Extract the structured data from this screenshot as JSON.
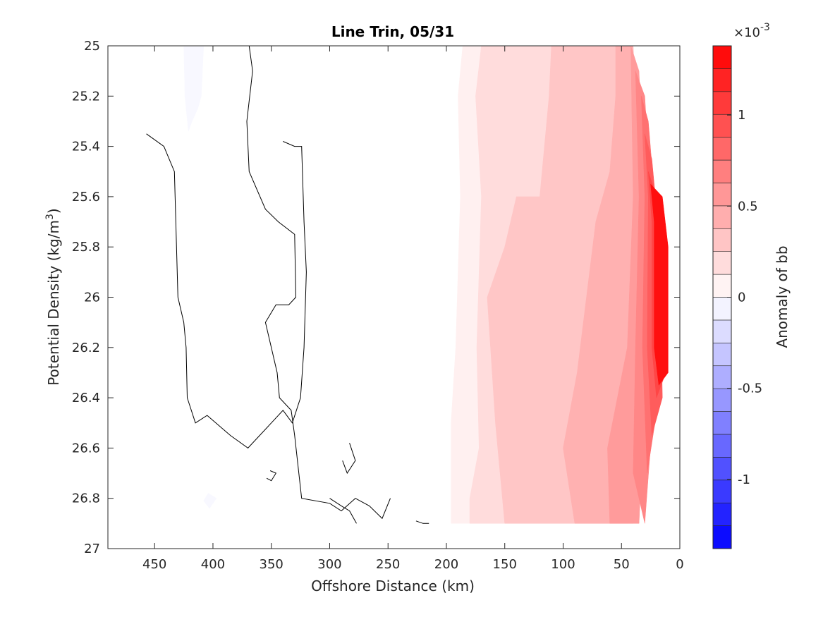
{
  "chart_data": {
    "type": "heatmap",
    "title": "Line Trin, 05/31",
    "xlabel": "Offshore Distance (km)",
    "ylabel_main": "Potential Density (kg/m",
    "ylabel_sup": "3",
    "ylabel_tail": ")",
    "xlim": [
      490,
      0
    ],
    "xticks": [
      450,
      400,
      350,
      300,
      250,
      200,
      150,
      100,
      50,
      0
    ],
    "ylim": [
      25,
      27
    ],
    "y_reversed": true,
    "yticks": [
      "25",
      "25.2",
      "25.4",
      "25.6",
      "25.8",
      "26",
      "26.2",
      "26.4",
      "26.6",
      "26.8",
      "27"
    ],
    "yticks_values": [
      25,
      25.2,
      25.4,
      25.6,
      25.8,
      26,
      26.2,
      26.4,
      26.6,
      26.8,
      27
    ],
    "colorbar": {
      "label": "Anomaly of bb",
      "multiplier_base": "×10",
      "multiplier_exp": "-3",
      "range": [
        -0.00138,
        0.00138
      ],
      "ticks": [
        "1",
        "0.5",
        "0",
        "-0.5",
        "-1"
      ],
      "tick_values": [
        1,
        0.5,
        0,
        -0.5,
        -1
      ],
      "n_levels": 22,
      "positive_color": "#ff0000",
      "negative_color": "#0000ff",
      "neutral_color": "#ffffff"
    },
    "regions": [
      {
        "level": -0.04,
        "points": [
          [
            425,
            25
          ],
          [
            408,
            25
          ],
          [
            410,
            25.2
          ],
          [
            413,
            25.25
          ],
          [
            418,
            25.3
          ],
          [
            421,
            25.34
          ],
          [
            424,
            25.2
          ]
        ]
      },
      {
        "level": -0.04,
        "points": [
          [
            404,
            26.78
          ],
          [
            397,
            26.8
          ],
          [
            403,
            26.84
          ],
          [
            408,
            26.81
          ]
        ]
      },
      {
        "level": 0.08,
        "points": [
          [
            186,
            25
          ],
          [
            40,
            25
          ],
          [
            40,
            26.9
          ],
          [
            196,
            26.9
          ],
          [
            196,
            26.5
          ],
          [
            192,
            26.2
          ],
          [
            188,
            25.6
          ],
          [
            190,
            25.2
          ]
        ]
      },
      {
        "level": 0.19,
        "points": [
          [
            170,
            25
          ],
          [
            45,
            25
          ],
          [
            40,
            26.4
          ],
          [
            45,
            26.9
          ],
          [
            180,
            26.9
          ],
          [
            180,
            26.8
          ],
          [
            172,
            26.6
          ],
          [
            174,
            26.2
          ],
          [
            170,
            25.6
          ],
          [
            175,
            25.2
          ]
        ]
      },
      {
        "level": 0.31,
        "points": [
          [
            110,
            25
          ],
          [
            50,
            25
          ],
          [
            35,
            26.4
          ],
          [
            40,
            26.9
          ],
          [
            150,
            26.9
          ],
          [
            158,
            26.5
          ],
          [
            165,
            26.0
          ],
          [
            150,
            25.8
          ],
          [
            140,
            25.6
          ],
          [
            120,
            25.6
          ],
          [
            112,
            25.2
          ]
        ]
      },
      {
        "level": 0.42,
        "points": [
          [
            55,
            25
          ],
          [
            40,
            25
          ],
          [
            35,
            25.6
          ],
          [
            30,
            26.3
          ],
          [
            35,
            26.9
          ],
          [
            90,
            26.9
          ],
          [
            100,
            26.6
          ],
          [
            88,
            26.3
          ],
          [
            72,
            25.7
          ],
          [
            60,
            25.5
          ],
          [
            55,
            25.2
          ]
        ]
      },
      {
        "level": 0.54,
        "points": [
          [
            42,
            25
          ],
          [
            35,
            25.1
          ],
          [
            30,
            25.6
          ],
          [
            30,
            26.4
          ],
          [
            35,
            26.9
          ],
          [
            60,
            26.9
          ],
          [
            62,
            26.6
          ],
          [
            45,
            26.2
          ],
          [
            40,
            25.6
          ]
        ]
      },
      {
        "level": 0.65,
        "points": [
          [
            38,
            25.1
          ],
          [
            30,
            25.2
          ],
          [
            25,
            25.6
          ],
          [
            22,
            26.4
          ],
          [
            30,
            26.9
          ],
          [
            40,
            26.7
          ],
          [
            38,
            26.2
          ],
          [
            35,
            25.6
          ]
        ]
      },
      {
        "level": 0.77,
        "points": [
          [
            33,
            25.2
          ],
          [
            27,
            25.3
          ],
          [
            20,
            25.7
          ],
          [
            18,
            26.4
          ],
          [
            28,
            26.7
          ],
          [
            32,
            26.2
          ],
          [
            30,
            25.6
          ]
        ]
      },
      {
        "level": 0.88,
        "points": [
          [
            30,
            25.35
          ],
          [
            24,
            25.45
          ],
          [
            17,
            25.8
          ],
          [
            15,
            26.4
          ],
          [
            24,
            26.55
          ],
          [
            28,
            26.2
          ],
          [
            27,
            25.6
          ]
        ]
      },
      {
        "level": 1.0,
        "points": [
          [
            27,
            25.5
          ],
          [
            20,
            25.6
          ],
          [
            13,
            25.8
          ],
          [
            12,
            26.3
          ],
          [
            20,
            26.4
          ],
          [
            24,
            26.2
          ],
          [
            24,
            25.7
          ]
        ]
      },
      {
        "level": 1.3,
        "points": [
          [
            25,
            25.55
          ],
          [
            15,
            25.6
          ],
          [
            10,
            25.8
          ],
          [
            10,
            26.3
          ],
          [
            18,
            26.35
          ],
          [
            22,
            26.2
          ],
          [
            22,
            25.7
          ]
        ]
      }
    ],
    "contour_lines": [
      [
        [
          369,
          25
        ],
        [
          366,
          25.1
        ],
        [
          371,
          25.3
        ],
        [
          369,
          25.5
        ],
        [
          355,
          25.65
        ],
        [
          344,
          25.7
        ],
        [
          330,
          25.75
        ],
        [
          329,
          26.0
        ],
        [
          335,
          26.03
        ],
        [
          346,
          26.03
        ],
        [
          355,
          26.1
        ],
        [
          350,
          26.2
        ],
        [
          345,
          26.3
        ],
        [
          343,
          26.4
        ],
        [
          333,
          26.45
        ],
        [
          330,
          26.55
        ],
        [
          324,
          26.8
        ],
        [
          300,
          26.82
        ],
        [
          290,
          26.85
        ],
        [
          278,
          26.8
        ],
        [
          266,
          26.83
        ],
        [
          255,
          26.88
        ],
        [
          248,
          26.8
        ]
      ],
      [
        [
          457,
          25.35
        ],
        [
          442,
          25.4
        ],
        [
          433,
          25.5
        ],
        [
          430,
          26.0
        ],
        [
          425,
          26.1
        ],
        [
          423,
          26.2
        ],
        [
          422,
          26.4
        ],
        [
          415,
          26.5
        ],
        [
          405,
          26.47
        ],
        [
          385,
          26.55
        ],
        [
          370,
          26.6
        ],
        [
          350,
          26.5
        ],
        [
          340,
          26.45
        ],
        [
          332,
          26.5
        ],
        [
          325,
          26.4
        ],
        [
          322,
          26.2
        ],
        [
          320,
          25.9
        ],
        [
          322,
          25.7
        ],
        [
          324,
          25.4
        ],
        [
          330,
          25.4
        ],
        [
          340,
          25.38
        ]
      ],
      [
        [
          283,
          26.58
        ],
        [
          278,
          26.65
        ],
        [
          285,
          26.7
        ],
        [
          289,
          26.65
        ]
      ],
      [
        [
          351,
          26.69
        ],
        [
          346,
          26.7
        ],
        [
          350,
          26.73
        ],
        [
          354,
          26.72
        ]
      ],
      [
        [
          300,
          26.8
        ],
        [
          290,
          26.83
        ],
        [
          283,
          26.85
        ],
        [
          277,
          26.9
        ]
      ],
      [
        [
          226,
          26.89
        ],
        [
          220,
          26.9
        ],
        [
          215,
          26.9
        ]
      ]
    ]
  }
}
